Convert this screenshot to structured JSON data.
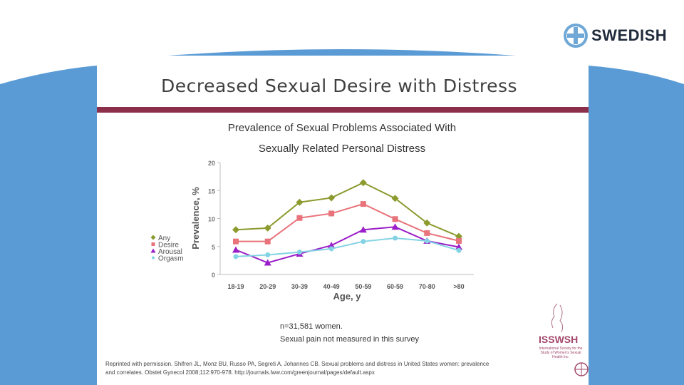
{
  "slide": {
    "title": "Decreased Sexual Desire with Distress",
    "brand": "SWEDISH",
    "note_n": "n=31,581 women.",
    "note_pain": "Sexual pain not measured in this survey",
    "reference_line1": "Reprinted with permission. Shifren JL, Monz BU, Russo PA, Segreti A, Johannes CB. Sexual problems and distress in United States women: prevalence",
    "reference_line2": "and correlates. Obstet Gynecol 2008;112:970-978. http://journals.lww.com/greenjournal/pages/default.aspx",
    "isswsh": {
      "name": "ISSWSH",
      "subtitle": "International Society for the Study of Women's Sexual Health Inc."
    }
  },
  "colors": {
    "any": "#8c9a2e",
    "desire": "#e8737a",
    "arousal": "#9b1fc8",
    "orgasm": "#84d3e4",
    "blue_band": "#5b9bd5",
    "maroon": "#8b2f4b"
  },
  "chart_data": {
    "type": "line",
    "title_line1": "Prevalence of Sexual Problems Associated With",
    "title_line2": "Sexually Related Personal Distress",
    "xlabel": "Age, y",
    "ylabel": "Prevalence, %",
    "categories": [
      "18-19",
      "20-29",
      "30-39",
      "40-49",
      "50-59",
      "60-59",
      "70-80",
      ">80"
    ],
    "ylim": [
      0,
      20
    ],
    "yticks": [
      0,
      5,
      10,
      15,
      20
    ],
    "series": [
      {
        "name": "Any",
        "marker": "diamond",
        "values": [
          8.0,
          8.3,
          12.9,
          13.7,
          16.4,
          13.6,
          9.2,
          6.8
        ]
      },
      {
        "name": "Desire",
        "marker": "square",
        "values": [
          5.9,
          5.9,
          10.1,
          10.9,
          12.6,
          9.9,
          7.4,
          6.0
        ]
      },
      {
        "name": "Arousal",
        "marker": "triangle",
        "values": [
          4.4,
          2.1,
          3.7,
          5.2,
          8.0,
          8.5,
          6.0,
          4.9
        ]
      },
      {
        "name": "Orgasm",
        "marker": "circle",
        "values": [
          3.2,
          3.5,
          4.0,
          4.6,
          5.9,
          6.5,
          6.0,
          4.3
        ]
      }
    ]
  }
}
